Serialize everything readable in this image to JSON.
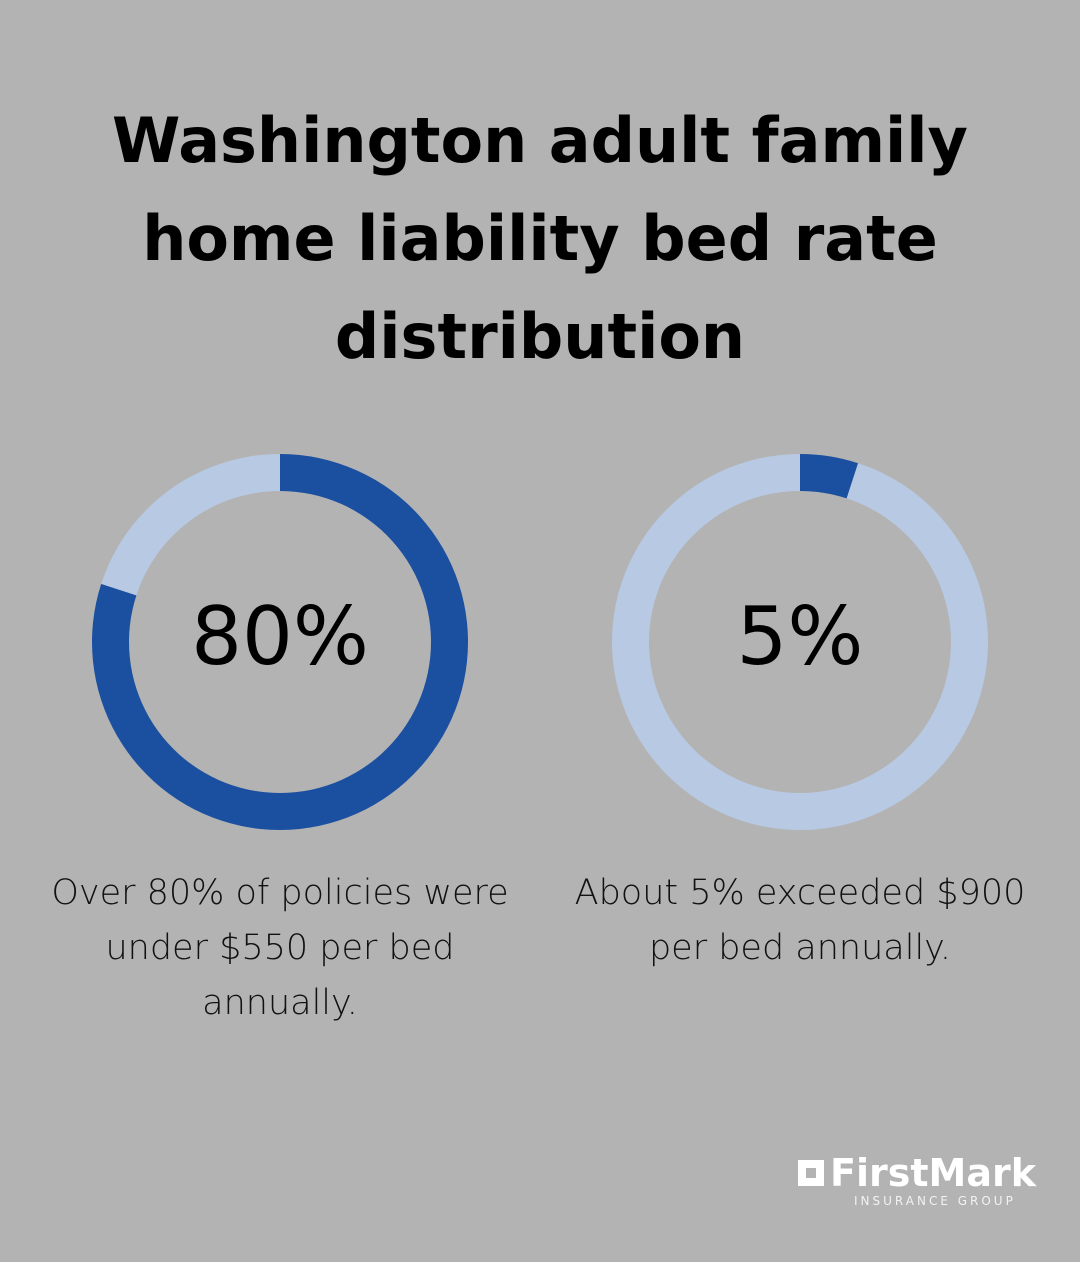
{
  "title": "Washington adult family home liability bed rate distribution",
  "chart_data": [
    {
      "type": "donut",
      "values": [
        80,
        20
      ],
      "colors": [
        "#1b4fa0",
        "#b8c9e3"
      ],
      "center_label": "80%",
      "caption": "Over 80% of policies were under $550 per bed annually."
    },
    {
      "type": "donut",
      "values": [
        5,
        95
      ],
      "colors": [
        "#1b4fa0",
        "#b8c9e3"
      ],
      "center_label": "5%",
      "caption": "About 5% exceeded $900 per bed annually."
    }
  ],
  "logo": {
    "name": "FirstMark",
    "tagline": "INSURANCE GROUP"
  }
}
